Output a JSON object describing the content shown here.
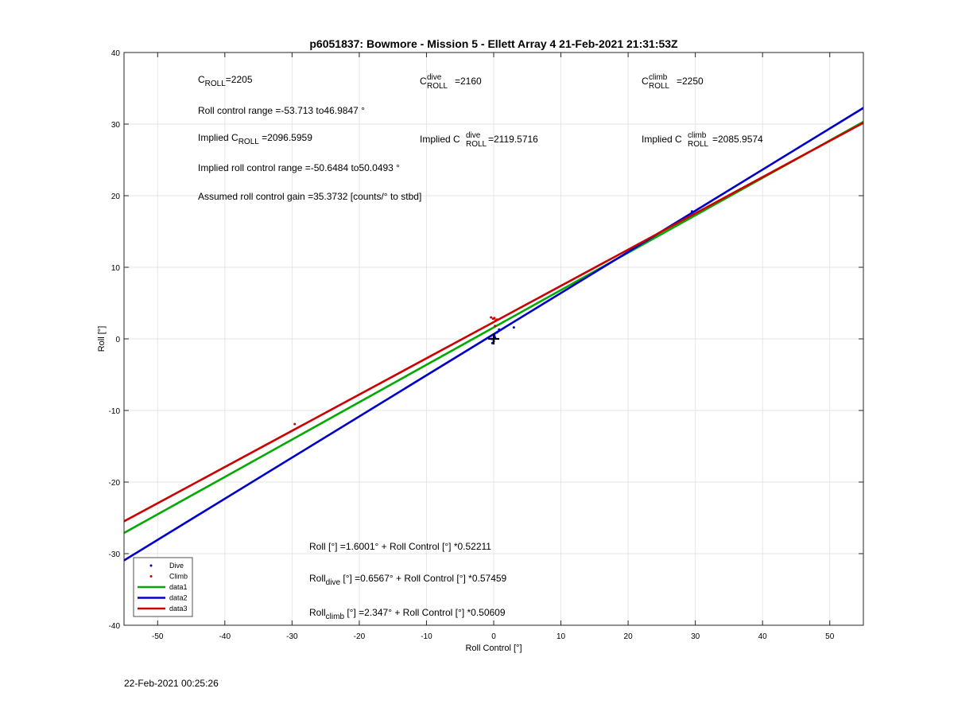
{
  "footer": {
    "timestamp": "22-Feb-2021 00:25:26"
  },
  "colors": {
    "dive": "#0000cc",
    "climb": "#cc0000",
    "data1": "#00aa00",
    "data2": "#0000cc",
    "data3": "#cc0000",
    "grid": "#e6e6e6",
    "axes": "#262626"
  },
  "chart_data": {
    "type": "scatter",
    "title": "p6051837: Bowmore - Mission 5 - Ellett Array 4 21-Feb-2021 21:31:53Z",
    "xlabel": "Roll Control [°]",
    "ylabel": "Roll [°]",
    "xlim": [
      -55,
      55
    ],
    "ylim": [
      -40,
      40
    ],
    "xticks": [
      -50,
      -40,
      -30,
      -20,
      -10,
      0,
      10,
      20,
      30,
      40,
      50
    ],
    "yticks": [
      -40,
      -30,
      -20,
      -10,
      0,
      10,
      20,
      30,
      40
    ],
    "grid": true,
    "legend_position": "bottom-left",
    "legend": [
      "Dive",
      "Climb",
      "data1",
      "data2",
      "data3"
    ],
    "series": [
      {
        "name": "Dive",
        "kind": "points",
        "color_key": "dive",
        "x": [
          -0.3,
          0.0,
          0.2,
          0.5,
          0.8,
          3.0,
          -0.2,
          0.1,
          29.5
        ],
        "y": [
          0.0,
          -0.3,
          0.2,
          0.9,
          1.3,
          1.6,
          -0.6,
          0.5,
          17.8
        ]
      },
      {
        "name": "Climb",
        "kind": "points",
        "color_key": "climb",
        "x": [
          -0.4,
          -0.1,
          0.1,
          0.3,
          0.5,
          0.2,
          -29.6
        ],
        "y": [
          3.0,
          2.8,
          2.9,
          2.6,
          2.7,
          1.8,
          -11.9
        ]
      },
      {
        "name": "data1",
        "kind": "line",
        "color_key": "data1",
        "intercept": 1.6001,
        "slope": 0.52211
      },
      {
        "name": "data2",
        "kind": "line",
        "color_key": "data2",
        "intercept": 0.6567,
        "slope": 0.57459
      },
      {
        "name": "data3",
        "kind": "line",
        "color_key": "data3",
        "intercept": 2.347,
        "slope": 0.50609
      }
    ],
    "annotations": {
      "c_roll": {
        "base": "C",
        "sub": "ROLL",
        "value": "=2205"
      },
      "c_roll_dive": {
        "base": "C",
        "sup": "dive",
        "sub": "ROLL",
        "value": "=2160"
      },
      "c_roll_climb": {
        "base": "C",
        "sup": "climb",
        "sub": "ROLL",
        "value": "=2250"
      },
      "roll_control_range": "Roll control range =-53.713 to46.9847 °",
      "implied_c_roll": {
        "prefix": "Implied C",
        "sub": "ROLL",
        "value": " =2096.5959"
      },
      "implied_c_roll_dive": {
        "prefix": "Implied C",
        "sup": "dive",
        "sub": "ROLL",
        "value": " =2119.5716"
      },
      "implied_c_roll_climb": {
        "prefix": "Implied C",
        "sup": "climb",
        "sub": "ROLL",
        "value": " =2085.9574"
      },
      "implied_range": "Implied roll control range =-50.6484 to50.0493 °",
      "gain": "Assumed roll control gain =35.3732 [counts/° to stbd]",
      "fit_all": "Roll [°] =1.6001° + Roll Control [°] *0.52211",
      "fit_dive": {
        "prefix": "Roll",
        "sub": "dive",
        "value": " [°] =0.6567° + Roll Control [°] *0.57459"
      },
      "fit_climb": {
        "prefix": "Roll",
        "sub": "climb",
        "value": " [°] =2.347° + Roll Control [°] *0.50609"
      }
    }
  }
}
